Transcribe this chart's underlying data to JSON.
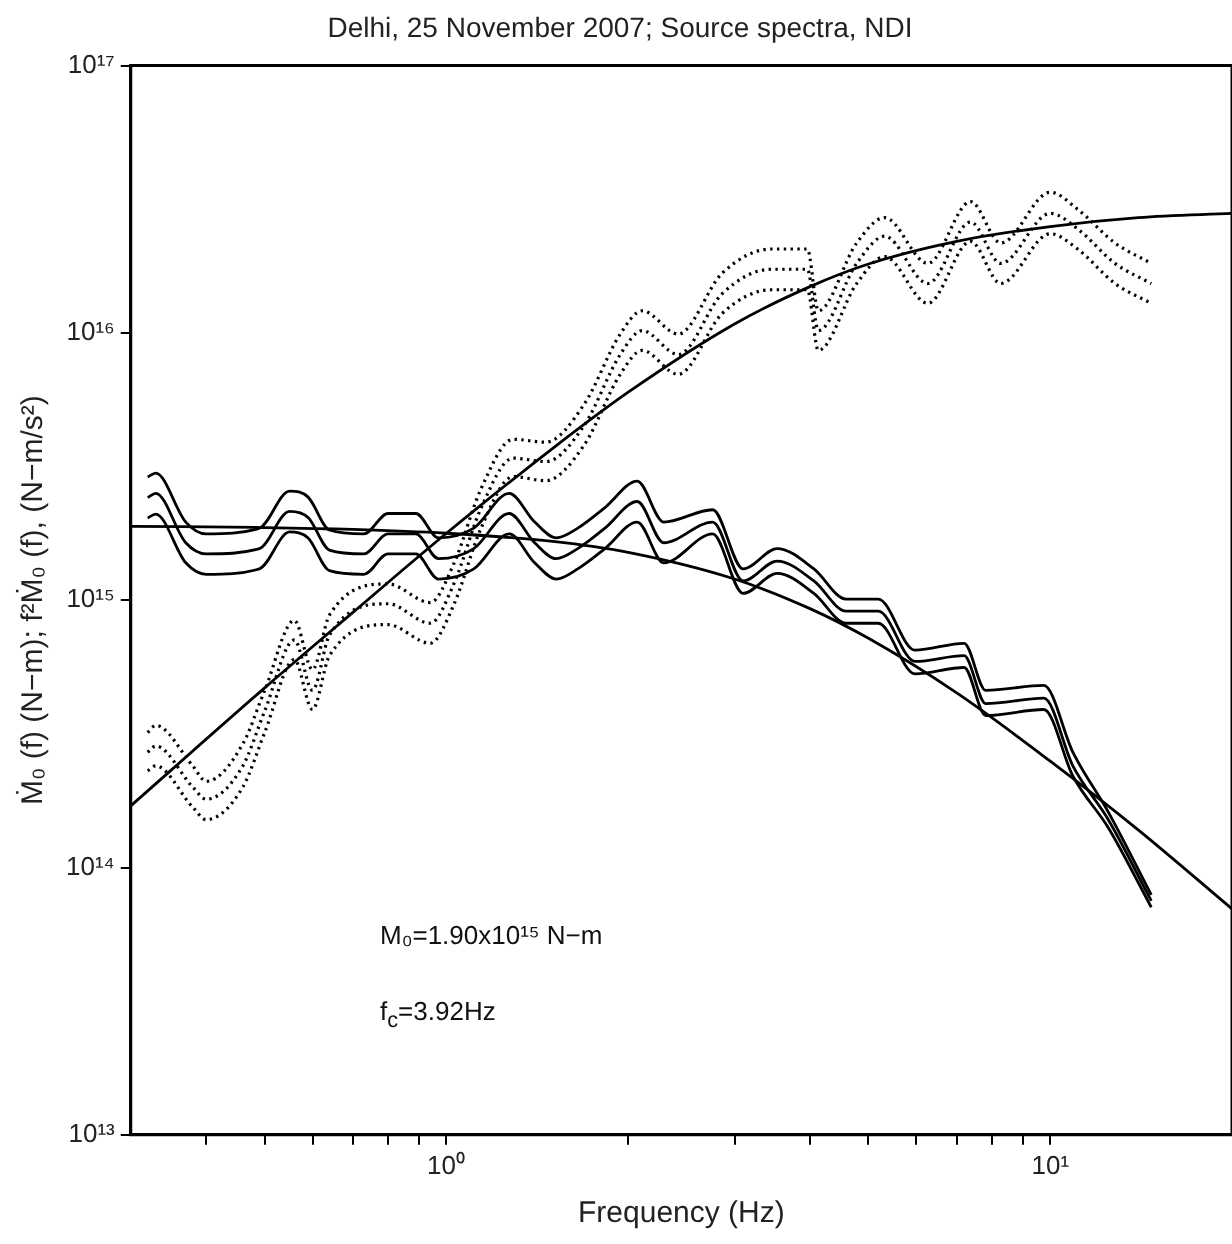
{
  "chart_data": {
    "type": "line",
    "title": "Delhi, 25 November 2007; Source spectra, NDI",
    "xlabel": "Frequency (Hz)",
    "ylabel": "Ṁ₀ (f) (N−m); f²Ṁ₀ (f), (N−m/s²)",
    "log": "xy",
    "grid": false,
    "legend": false,
    "marker": "none",
    "xlim": [
      0.3,
      20
    ],
    "ylim": [
      10000000000000.0,
      1e+17
    ],
    "xticks": [
      {
        "value": 0.4,
        "label": null
      },
      {
        "value": 0.5,
        "label": null
      },
      {
        "value": 0.6,
        "label": null
      },
      {
        "value": 0.7,
        "label": null
      },
      {
        "value": 0.8,
        "label": null
      },
      {
        "value": 0.9,
        "label": null
      },
      {
        "value": 1,
        "label": "10⁰"
      },
      {
        "value": 2,
        "label": null
      },
      {
        "value": 3,
        "label": null
      },
      {
        "value": 4,
        "label": null
      },
      {
        "value": 5,
        "label": null
      },
      {
        "value": 6,
        "label": null
      },
      {
        "value": 7,
        "label": null
      },
      {
        "value": 8,
        "label": null
      },
      {
        "value": 9,
        "label": null
      },
      {
        "value": 10,
        "label": "10¹"
      }
    ],
    "yticks": [
      {
        "value": 10000000000000.0,
        "label": "10¹³"
      },
      {
        "value": 100000000000000.0,
        "label": "10¹⁴"
      },
      {
        "value": 1000000000000000.0,
        "label": "10¹⁵"
      },
      {
        "value": 1e+16,
        "label": "10¹⁶"
      },
      {
        "value": 1e+17,
        "label": "10¹⁷"
      }
    ],
    "annotations": [
      "M₀=1.90x10¹⁵ N−m",
      "f$_{c}$=3.92Hz"
    ],
    "series": [
      {
        "color": "#000000",
        "line_style": "solid",
        "x": [
          0.32,
          0.33,
          0.37,
          0.4,
          0.49,
          0.55,
          0.59,
          0.64,
          0.73,
          0.8,
          0.89,
          0.97,
          1.11,
          1.27,
          1.4,
          1.52,
          1.65,
          1.83,
          2.07,
          2.29,
          2.76,
          3.1,
          3.53,
          4.06,
          4.59,
          5.19,
          5.97,
          7.2,
          7.82,
          9.76,
          10.9,
          12.5,
          14.7
        ],
        "values": [
          2890000000000000.0,
          2990000000000000.0,
          1960000000000000.0,
          1770000000000000.0,
          1860000000000000.0,
          2560000000000000.0,
          2430000000000000.0,
          1830000000000000.0,
          1770000000000000.0,
          2110000000000000.0,
          2110000000000000.0,
          1710000000000000.0,
          1860000000000000.0,
          2510000000000000.0,
          1960000000000000.0,
          1710000000000000.0,
          1860000000000000.0,
          2220000000000000.0,
          2790000000000000.0,
          1960000000000000.0,
          2180000000000000.0,
          1310000000000000.0,
          1560000000000000.0,
          1310000000000000.0,
          1010000000000000.0,
          1010000000000000.0,
          650000000000000.0,
          690000000000000.0,
          460000000000000.0,
          480000000000000.0,
          270000000000000.0,
          160000000000000.0,
          79000000000000.0
        ]
      },
      {
        "color": "#000000",
        "line_style": "solid",
        "x": [
          0.32,
          0.33,
          0.37,
          0.4,
          0.49,
          0.55,
          0.59,
          0.64,
          0.73,
          0.8,
          0.89,
          0.97,
          1.11,
          1.27,
          1.4,
          1.52,
          1.65,
          1.83,
          2.07,
          2.29,
          2.76,
          3.1,
          3.53,
          4.06,
          4.59,
          5.19,
          5.97,
          7.2,
          7.82,
          9.76,
          10.9,
          12.5,
          14.7
        ],
        "values": [
          2420000000000000.0,
          2510000000000000.0,
          1640000000000000.0,
          1490000000000000.0,
          1560000000000000.0,
          2150000000000000.0,
          2040000000000000.0,
          1540000000000000.0,
          1490000000000000.0,
          1770000000000000.0,
          1770000000000000.0,
          1430000000000000.0,
          1560000000000000.0,
          2110000000000000.0,
          1640000000000000.0,
          1430000000000000.0,
          1560000000000000.0,
          1860000000000000.0,
          2340000000000000.0,
          1640000000000000.0,
          1960000000000000.0,
          1180000000000000.0,
          1400000000000000.0,
          1180000000000000.0,
          910000000000000.0,
          910000000000000.0,
          590000000000000.0,
          620000000000000.0,
          410000000000000.0,
          430000000000000.0,
          240000000000000.0,
          150000000000000.0,
          75000000000000.0
        ]
      },
      {
        "color": "#000000",
        "line_style": "solid",
        "x": [
          0.32,
          0.33,
          0.37,
          0.4,
          0.49,
          0.55,
          0.59,
          0.64,
          0.73,
          0.8,
          0.89,
          0.97,
          1.11,
          1.27,
          1.4,
          1.52,
          1.65,
          1.83,
          2.07,
          2.29,
          2.76,
          3.1,
          3.53,
          4.06,
          4.59,
          5.19,
          5.97,
          7.2,
          7.82,
          9.76,
          10.9,
          12.5,
          14.7
        ],
        "values": [
          2030000000000000.0,
          2100000000000000.0,
          1380000000000000.0,
          1250000000000000.0,
          1310000000000000.0,
          1800000000000000.0,
          1710000000000000.0,
          1290000000000000.0,
          1250000000000000.0,
          1490000000000000.0,
          1490000000000000.0,
          1200000000000000.0,
          1310000000000000.0,
          1770000000000000.0,
          1380000000000000.0,
          1200000000000000.0,
          1310000000000000.0,
          1560000000000000.0,
          1960000000000000.0,
          1380000000000000.0,
          1770000000000000.0,
          1060000000000000.0,
          1260000000000000.0,
          1060000000000000.0,
          820000000000000.0,
          820000000000000.0,
          530000000000000.0,
          560000000000000.0,
          370000000000000.0,
          390000000000000.0,
          220000000000000.0,
          140000000000000.0,
          71000000000000.0
        ]
      },
      {
        "color": "#000000",
        "line_style": "dotted",
        "x": [
          0.32,
          0.33,
          0.38,
          0.4,
          0.46,
          0.5,
          0.56,
          0.6,
          0.64,
          0.8,
          0.94,
          1.03,
          1.14,
          1.29,
          1.46,
          1.69,
          1.94,
          2.11,
          2.42,
          2.86,
          3.45,
          3.96,
          4.13,
          4.78,
          5.32,
          6.27,
          7.38,
          8.28,
          10,
          11.1,
          12.8,
          14.7
        ],
        "values": [
          270000000000000.0,
          285000000000000.0,
          200000000000000.0,
          180000000000000.0,
          240000000000000.0,
          385000000000000.0,
          710000000000000.0,
          460000000000000.0,
          740000000000000.0,
          970000000000000.0,
          820000000000000.0,
          1160000000000000.0,
          2200000000000000.0,
          3400000000000000.0,
          3300000000000000.0,
          4500000000000000.0,
          8300000000000000.0,
          1.02e+16,
          8300000000000000.0,
          1.4e+16,
          1.73e+16,
          1.73e+16,
          1.02e+16,
          1.82e+16,
          2.3e+16,
          1.53e+16,
          2.6e+16,
          1.82e+16,
          2.8e+16,
          2.45e+16,
          1.82e+16,
          1.53e+16
        ]
      },
      {
        "color": "#000000",
        "line_style": "dotted",
        "x": [
          0.32,
          0.33,
          0.38,
          0.4,
          0.46,
          0.5,
          0.56,
          0.6,
          0.64,
          0.8,
          0.94,
          1.03,
          1.14,
          1.29,
          1.46,
          1.69,
          1.94,
          2.11,
          2.42,
          2.86,
          3.45,
          3.96,
          4.13,
          4.78,
          5.32,
          6.27,
          7.38,
          8.28,
          10,
          11.1,
          12.8,
          14.7
        ],
        "values": [
          320000000000000.0,
          340000000000000.0,
          240000000000000.0,
          210000000000000.0,
          290000000000000.0,
          460000000000000.0,
          840000000000000.0,
          550000000000000.0,
          880000000000000.0,
          1150000000000000.0,
          980000000000000.0,
          1380000000000000.0,
          2600000000000000.0,
          4000000000000000.0,
          3900000000000000.0,
          5400000000000000.0,
          9900000000000000.0,
          1.21e+16,
          9900000000000000.0,
          1.67e+16,
          2.06e+16,
          2.06e+16,
          1.21e+16,
          2.17e+16,
          2.7e+16,
          1.82e+16,
          3.1e+16,
          2.17e+16,
          3.36e+16,
          2.9e+16,
          2.17e+16,
          1.82e+16
        ]
      },
      {
        "color": "#000000",
        "line_style": "dotted",
        "x": [
          0.32,
          0.33,
          0.38,
          0.4,
          0.46,
          0.5,
          0.56,
          0.6,
          0.64,
          0.8,
          0.94,
          1.03,
          1.14,
          1.29,
          1.46,
          1.69,
          1.94,
          2.11,
          2.42,
          2.86,
          3.45,
          3.96,
          4.13,
          4.78,
          5.32,
          6.27,
          7.38,
          8.28,
          10,
          11.1,
          12.8,
          14.7
        ],
        "values": [
          230000000000000.0,
          240000000000000.0,
          168000000000000.0,
          151000000000000.0,
          200000000000000.0,
          320000000000000.0,
          600000000000000.0,
          390000000000000.0,
          620000000000000.0,
          810000000000000.0,
          690000000000000.0,
          970000000000000.0,
          1850000000000000.0,
          2900000000000000.0,
          2800000000000000.0,
          3800000000000000.0,
          7000000000000000.0,
          8600000000000000.0,
          7000000000000000.0,
          1.18e+16,
          1.45e+16,
          1.45e+16,
          8600000000000000.0,
          1.53e+16,
          1.93e+16,
          1.29e+16,
          2.2e+16,
          1.53e+16,
          2.35e+16,
          2.06e+16,
          1.53e+16,
          1.29e+16
        ]
      },
      {
        "color": "#000000",
        "line_style": "solid",
        "x": [
          0.3,
          0.5,
          0.7,
          1,
          1.5,
          2,
          3,
          4,
          5,
          7,
          10,
          14,
          20
        ],
        "values": [
          1890000000000000.0,
          1870000000000000.0,
          1840000000000000.0,
          1780000000000000.0,
          1660000000000000.0,
          1510000000000000.0,
          1200000000000000.0,
          930000000000000.0,
          720000000000000.0,
          450000000000000.0,
          250000000000000.0,
          138000000000000.0,
          70000000000000.0
        ]
      },
      {
        "color": "#000000",
        "line_style": "solid",
        "x": [
          0.3,
          0.5,
          0.7,
          1,
          1.5,
          2,
          3,
          4,
          5,
          7,
          10,
          14,
          20
        ],
        "values": [
          170000000000000.0,
          470000000000000.0,
          900000000000000.0,
          1780000000000000.0,
          3700000000000000.0,
          6000000000000000.0,
          1.08e+16,
          1.49e+16,
          1.81e+16,
          2.2e+16,
          2.5e+16,
          2.7e+16,
          2.8e+16
        ]
      }
    ]
  }
}
